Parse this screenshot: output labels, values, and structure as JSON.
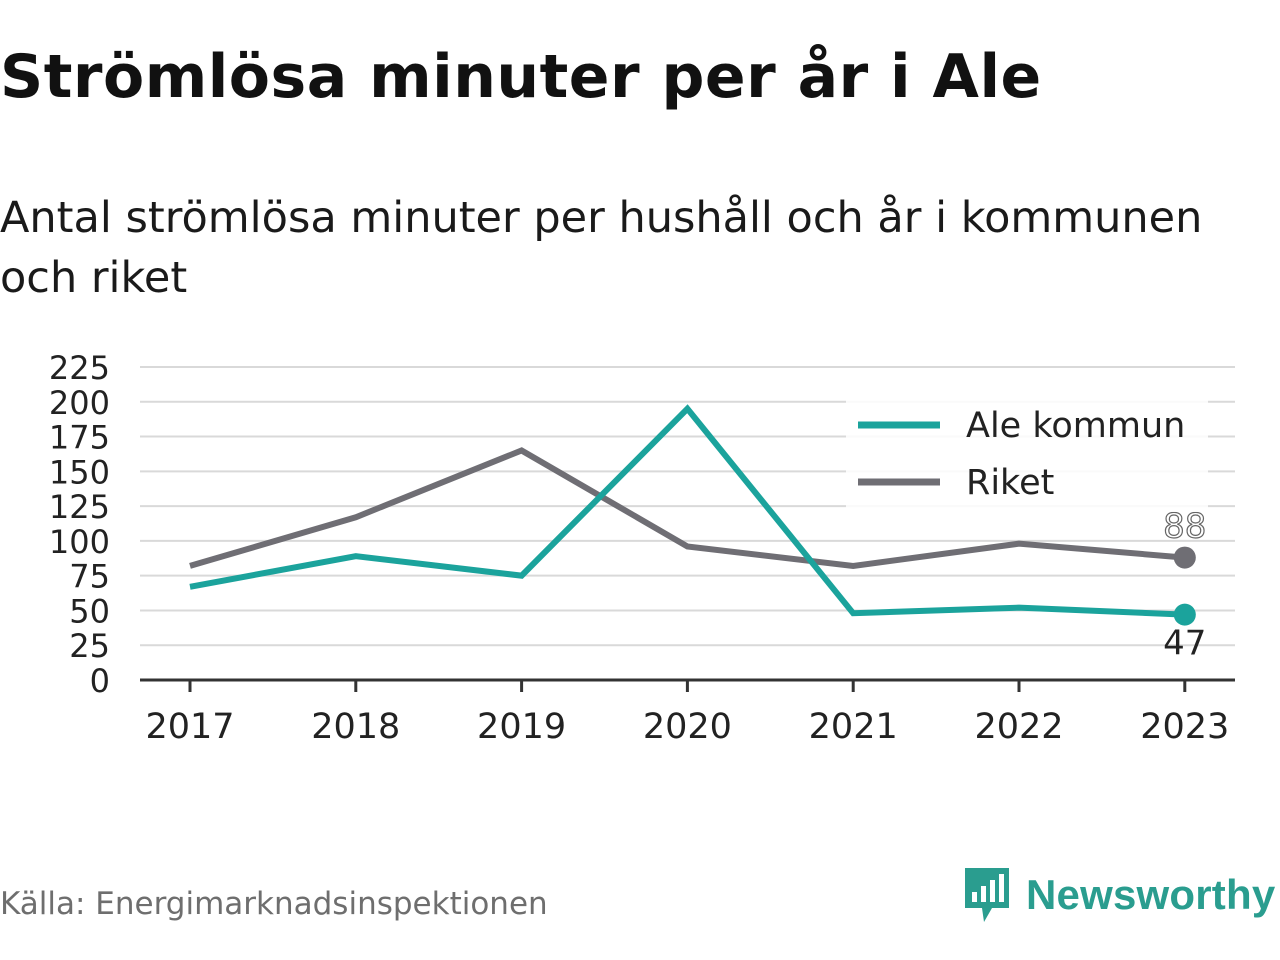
{
  "header": {
    "title": "Strömlösa minuter per år i Ale",
    "subtitle": "Antal strömlösa minuter per hushåll och år i kommunen och riket"
  },
  "footer": {
    "source": "Källa: Energimarknadsinspektionen",
    "brand": "Newsworthy",
    "brand_icon": "bar-chart-speech-bubble-icon"
  },
  "colors": {
    "ale": "#1ba39c",
    "riket": "#6f6e74",
    "grid": "#d9d9d9",
    "axis": "#333333",
    "brand": "#2a9d8f"
  },
  "chart_data": {
    "type": "line",
    "title": "Strömlösa minuter per år i Ale",
    "subtitle": "Antal strömlösa minuter per hushåll och år i kommunen och riket",
    "xlabel": "",
    "ylabel": "",
    "x": [
      "2017",
      "2018",
      "2019",
      "2020",
      "2021",
      "2022",
      "2023"
    ],
    "ylim": [
      0,
      225
    ],
    "yticks": [
      0,
      25,
      50,
      75,
      100,
      125,
      150,
      175,
      200,
      225
    ],
    "grid": true,
    "legend_position": "top-right",
    "series": [
      {
        "name": "Ale kommun",
        "color": "#1ba39c",
        "values": [
          67,
          89,
          75,
          195,
          48,
          52,
          47
        ],
        "end_label": "47"
      },
      {
        "name": "Riket",
        "color": "#6f6e74",
        "values": [
          82,
          117,
          165,
          96,
          82,
          98,
          88
        ],
        "end_label": "88"
      }
    ]
  }
}
